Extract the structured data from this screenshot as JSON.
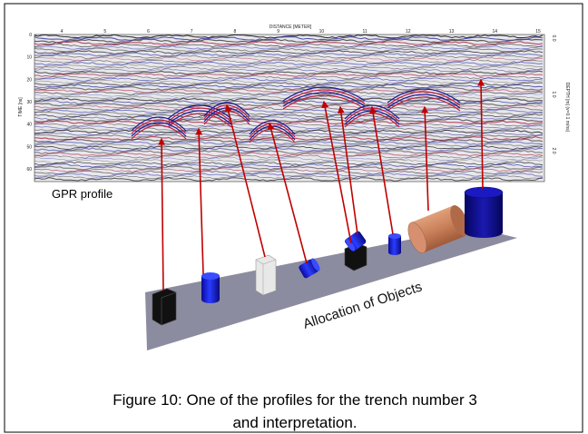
{
  "figure": {
    "profile": {
      "x_axis_title": "DISTANCE [METER]",
      "x_ticks": [
        "4",
        "5",
        "6",
        "7",
        "8",
        "9",
        "10",
        "11",
        "12",
        "13",
        "14",
        "15"
      ],
      "y_axis_title": "TIME [ns]",
      "y_ticks": [
        "0",
        "10",
        "20",
        "30",
        "40",
        "50",
        "60"
      ],
      "depth_axis_title": "DEPTH [m] (v=0.1 m/ns)",
      "depth_ticks": [
        "0.0",
        "1.0",
        "2.0"
      ],
      "label": "GPR profile"
    },
    "model_label": "Allocation of Objects",
    "caption": [
      "Figure 10: One of the profiles for the trench number 3",
      "and interpretation."
    ]
  }
}
